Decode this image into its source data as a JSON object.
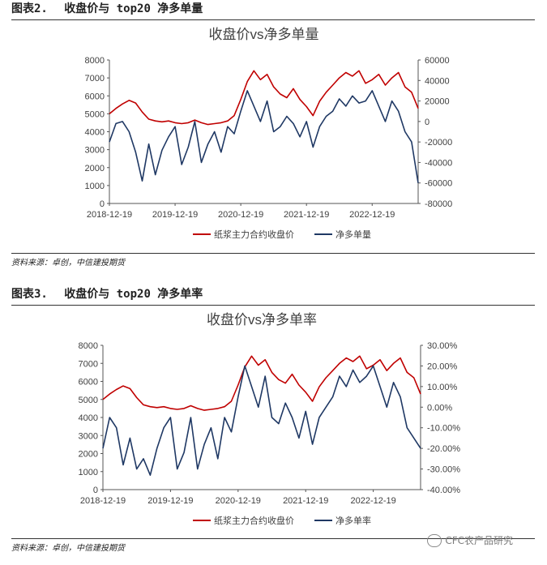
{
  "figures": [
    {
      "label": "图表2.",
      "heading": "收盘价与 top20 净多单量",
      "source": "资料来源：卓创，中信建投期货",
      "chart_data": {
        "type": "line",
        "title": "收盘价vs净多单量",
        "x_ticks": [
          "2018-12-19",
          "2019-12-19",
          "2020-12-19",
          "2021-12-19",
          "2022-12-19"
        ],
        "left_axis": {
          "min": 0,
          "max": 8000,
          "ticks": [
            "0",
            "1000",
            "2000",
            "3000",
            "4000",
            "5000",
            "6000",
            "7000",
            "8000"
          ]
        },
        "right_axis": {
          "min": -80000,
          "max": 60000,
          "ticks": [
            "-80000",
            "-60000",
            "-40000",
            "-20000",
            "0",
            "20000",
            "40000",
            "60000"
          ]
        },
        "legend": [
          "纸浆主力合约收盘价",
          "净多单量"
        ],
        "series": [
          {
            "name": "纸浆主力合约收盘价",
            "axis": "left",
            "color": "#c00000",
            "x": [
              0,
              0.1,
              0.2,
              0.3,
              0.4,
              0.5,
              0.6,
              0.7,
              0.8,
              0.9,
              1.0,
              1.1,
              1.2,
              1.3,
              1.4,
              1.5,
              1.6,
              1.7,
              1.8,
              1.9,
              2.0,
              2.1,
              2.2,
              2.3,
              2.4,
              2.5,
              2.6,
              2.7,
              2.8,
              2.9,
              3.0,
              3.1,
              3.2,
              3.3,
              3.4,
              3.5,
              3.6,
              3.7,
              3.8,
              3.9,
              4.0,
              4.1,
              4.2,
              4.3,
              4.4,
              4.5,
              4.6,
              4.7
            ],
            "y": [
              5000,
              5300,
              5550,
              5750,
              5600,
              5100,
              4700,
              4600,
              4550,
              4600,
              4500,
              4450,
              4500,
              4650,
              4500,
              4400,
              4450,
              4500,
              4600,
              4900,
              5800,
              6800,
              7400,
              6900,
              7200,
              6500,
              6100,
              5900,
              6400,
              5800,
              5400,
              4900,
              5700,
              6200,
              6600,
              7000,
              7300,
              7100,
              7400,
              6700,
              6900,
              7200,
              6600,
              7000,
              7300,
              6500,
              6200,
              5300
            ]
          },
          {
            "name": "净多单量",
            "axis": "right",
            "color": "#1f3864",
            "x": [
              0,
              0.1,
              0.2,
              0.3,
              0.4,
              0.5,
              0.6,
              0.7,
              0.8,
              0.9,
              1.0,
              1.1,
              1.2,
              1.3,
              1.4,
              1.5,
              1.6,
              1.7,
              1.8,
              1.9,
              2.0,
              2.1,
              2.2,
              2.3,
              2.4,
              2.5,
              2.6,
              2.7,
              2.8,
              2.9,
              3.0,
              3.1,
              3.2,
              3.3,
              3.4,
              3.5,
              3.6,
              3.7,
              3.8,
              3.9,
              4.0,
              4.1,
              4.2,
              4.3,
              4.4,
              4.5,
              4.6,
              4.7
            ],
            "y": [
              -20000,
              -2000,
              0,
              -10000,
              -30000,
              -58000,
              -22000,
              -52000,
              -28000,
              -15000,
              -5000,
              -42000,
              -25000,
              0,
              -40000,
              -22000,
              -10000,
              -30000,
              -5000,
              -12000,
              10000,
              30000,
              15000,
              0,
              20000,
              -10000,
              -5000,
              5000,
              -2000,
              -15000,
              0,
              -25000,
              -5000,
              5000,
              10000,
              22000,
              15000,
              25000,
              18000,
              20000,
              30000,
              15000,
              0,
              20000,
              10000,
              -10000,
              -20000,
              -60000
            ]
          }
        ]
      }
    },
    {
      "label": "图表3.",
      "heading": "收盘价与 top20 净多单率",
      "source": "资料来源：卓创，中信建投期货",
      "chart_data": {
        "type": "line",
        "title": "收盘价vs净多单率",
        "x_ticks": [
          "2018-12-19",
          "2019-12-19",
          "2020-12-19",
          "2021-12-19",
          "2022-12-19"
        ],
        "left_axis": {
          "min": 0,
          "max": 8000,
          "ticks": [
            "0",
            "1000",
            "2000",
            "3000",
            "4000",
            "5000",
            "6000",
            "7000",
            "8000"
          ]
        },
        "right_axis": {
          "min": -40,
          "max": 30,
          "ticks": [
            "-40.00%",
            "-30.00%",
            "-20.00%",
            "-10.00%",
            "0.00%",
            "10.00%",
            "20.00%",
            "30.00%"
          ]
        },
        "legend": [
          "纸浆主力合约收盘价",
          "净多单率"
        ],
        "series": [
          {
            "name": "纸浆主力合约收盘价",
            "axis": "left",
            "color": "#c00000",
            "x": [
              0,
              0.1,
              0.2,
              0.3,
              0.4,
              0.5,
              0.6,
              0.7,
              0.8,
              0.9,
              1.0,
              1.1,
              1.2,
              1.3,
              1.4,
              1.5,
              1.6,
              1.7,
              1.8,
              1.9,
              2.0,
              2.1,
              2.2,
              2.3,
              2.4,
              2.5,
              2.6,
              2.7,
              2.8,
              2.9,
              3.0,
              3.1,
              3.2,
              3.3,
              3.4,
              3.5,
              3.6,
              3.7,
              3.8,
              3.9,
              4.0,
              4.1,
              4.2,
              4.3,
              4.4,
              4.5,
              4.6,
              4.7
            ],
            "y": [
              5000,
              5300,
              5550,
              5750,
              5600,
              5100,
              4700,
              4600,
              4550,
              4600,
              4500,
              4450,
              4500,
              4650,
              4500,
              4400,
              4450,
              4500,
              4600,
              4900,
              5800,
              6800,
              7400,
              6900,
              7200,
              6500,
              6100,
              5900,
              6400,
              5800,
              5400,
              4900,
              5700,
              6200,
              6600,
              7000,
              7300,
              7100,
              7400,
              6700,
              6900,
              7200,
              6600,
              7000,
              7300,
              6500,
              6200,
              5300
            ]
          },
          {
            "name": "净多单率",
            "axis": "right",
            "color": "#1f3864",
            "x": [
              0,
              0.1,
              0.2,
              0.3,
              0.4,
              0.5,
              0.6,
              0.7,
              0.8,
              0.9,
              1.0,
              1.1,
              1.2,
              1.3,
              1.4,
              1.5,
              1.6,
              1.7,
              1.8,
              1.9,
              2.0,
              2.1,
              2.2,
              2.3,
              2.4,
              2.5,
              2.6,
              2.7,
              2.8,
              2.9,
              3.0,
              3.1,
              3.2,
              3.3,
              3.4,
              3.5,
              3.6,
              3.7,
              3.8,
              3.9,
              4.0,
              4.1,
              4.2,
              4.3,
              4.4,
              4.5,
              4.6,
              4.7
            ],
            "y": [
              -20,
              -5,
              -10,
              -28,
              -15,
              -30,
              -25,
              -33,
              -20,
              -10,
              -5,
              -30,
              -22,
              -5,
              -30,
              -18,
              -10,
              -25,
              -5,
              -12,
              5,
              20,
              10,
              0,
              15,
              -5,
              -8,
              2,
              -5,
              -15,
              -2,
              -18,
              -5,
              0,
              5,
              15,
              10,
              18,
              12,
              15,
              20,
              10,
              0,
              12,
              5,
              -10,
              -15,
              -20
            ]
          }
        ]
      }
    }
  ],
  "watermark": "CFC农产品研究"
}
